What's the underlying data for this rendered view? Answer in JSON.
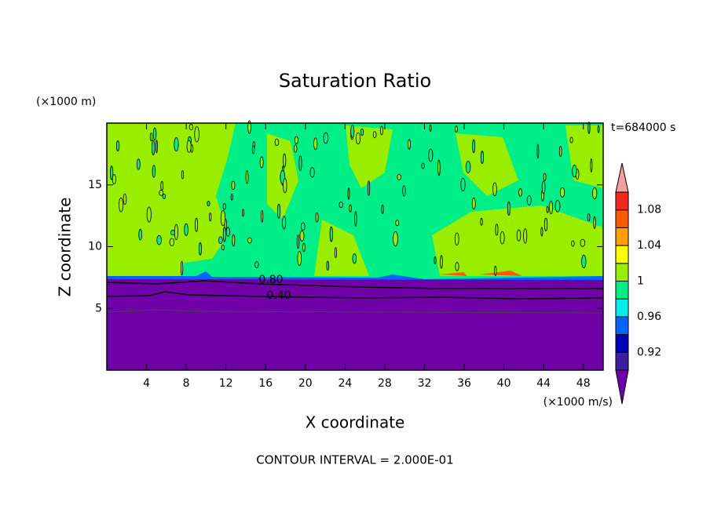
{
  "chart_data": {
    "type": "contour",
    "title": "Saturation Ratio",
    "x_label": "X coordinate",
    "y_label": "Z coordinate",
    "x_unit": "(×1000 m/s)",
    "y_unit": "(×1000 m)",
    "time_label": "t=684000 s",
    "footer": "CONTOUR INTERVAL = 2.000E-01",
    "contour_labels": [
      "0.80",
      "0.40"
    ],
    "xlim": [
      0,
      50
    ],
    "ylim": [
      0,
      20
    ],
    "xticks": [
      4,
      8,
      12,
      16,
      20,
      24,
      28,
      32,
      36,
      40,
      44,
      48
    ],
    "yticks": [
      5,
      10,
      15
    ],
    "colorbar": {
      "levels": [
        0.9,
        0.92,
        0.94,
        0.96,
        0.98,
        1,
        1.02,
        1.04,
        1.06,
        1.08,
        1.1
      ],
      "ticks": [
        0.92,
        0.96,
        1,
        1.04,
        1.08
      ],
      "colors": [
        "#7000a8",
        "#3c1ea0",
        "#0000b4",
        "#0064ff",
        "#00eeee",
        "#00ee88",
        "#99ee00",
        "#ffff00",
        "#ffa000",
        "#ff5a00",
        "#f0281e",
        "#f4a0a0"
      ]
    }
  }
}
